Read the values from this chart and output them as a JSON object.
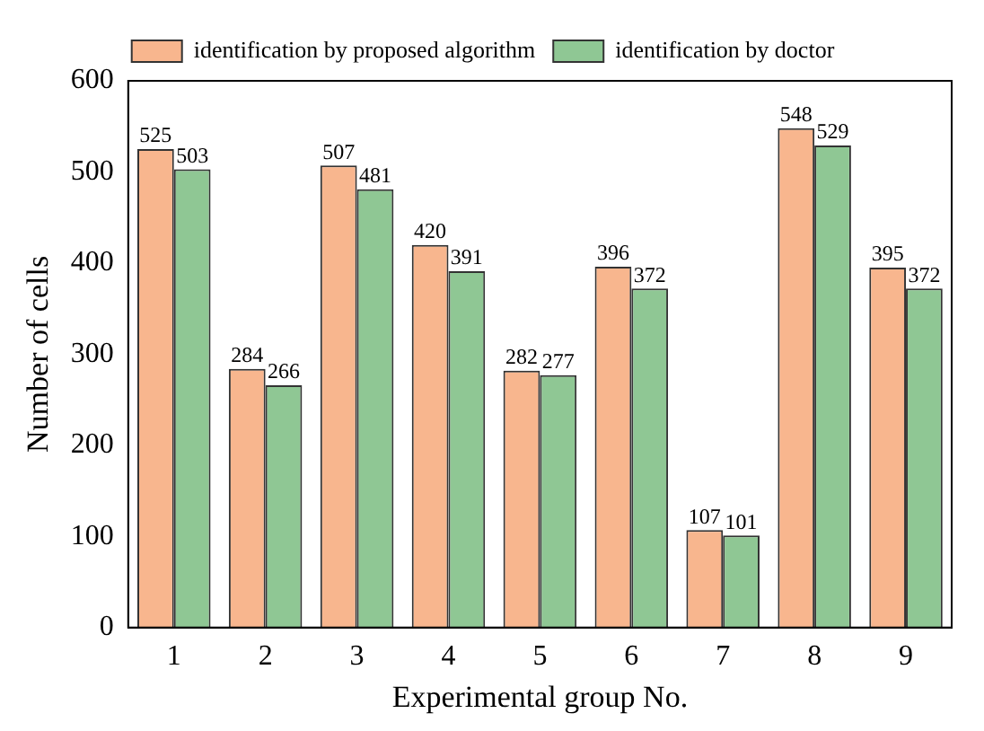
{
  "chart_data": {
    "type": "bar",
    "xlabel": "Experimental group No.",
    "ylabel": "Number of cells",
    "categories": [
      "1",
      "2",
      "3",
      "4",
      "5",
      "6",
      "7",
      "8",
      "9"
    ],
    "series": [
      {
        "name": "identification by proposed algorithm",
        "color": "#f8b68e",
        "values": [
          525,
          284,
          507,
          420,
          282,
          396,
          107,
          548,
          395
        ]
      },
      {
        "name": "identification by doctor",
        "color": "#8fc794",
        "values": [
          503,
          266,
          481,
          391,
          277,
          372,
          101,
          529,
          372
        ]
      }
    ],
    "ylim": [
      0,
      600
    ],
    "yticks": [
      0,
      100,
      200,
      300,
      400,
      500,
      600
    ],
    "grid": false,
    "legend": "top",
    "data_labels": true
  }
}
